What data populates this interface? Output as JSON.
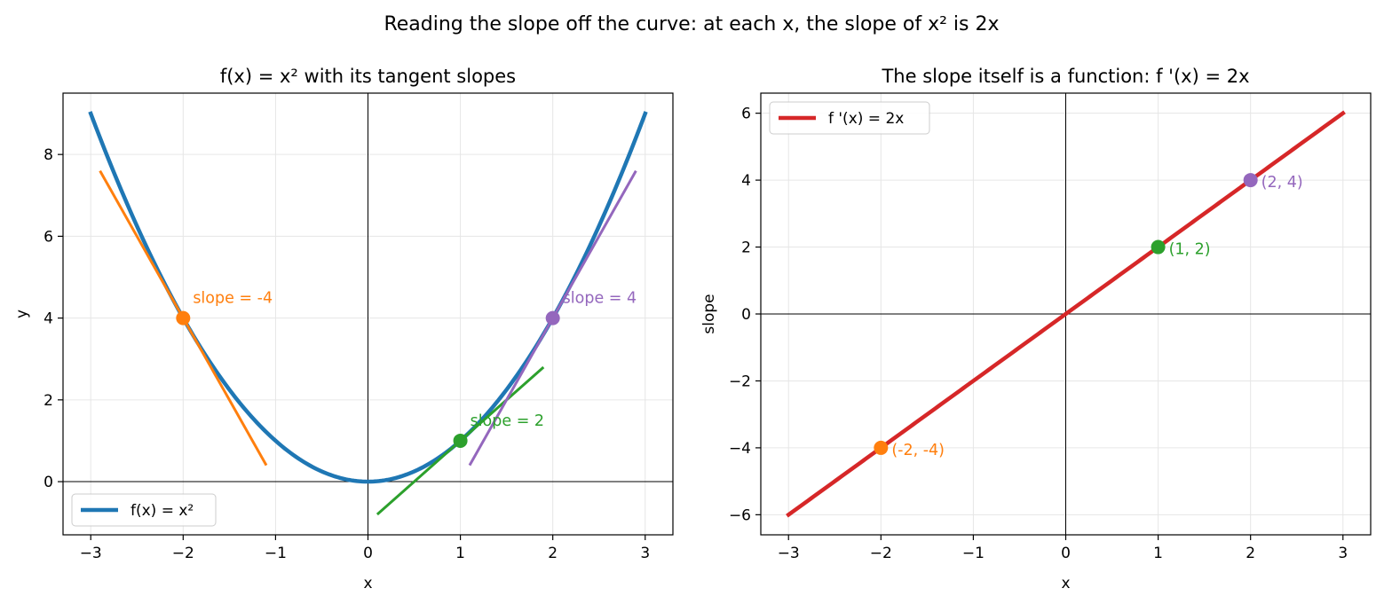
{
  "figure": {
    "suptitle": "Reading the slope off the curve: at each x, the slope of x² is 2x"
  },
  "chart_data": [
    {
      "type": "line",
      "title": "f(x) = x²  with its tangent slopes",
      "xlabel": "x",
      "ylabel": "y",
      "xlim": [
        -3.3,
        3.3
      ],
      "ylim": [
        -1.3,
        9.5
      ],
      "xticks": [
        -3,
        -2,
        -1,
        0,
        1,
        2,
        3
      ],
      "xtick_labels": [
        "−3",
        "−2",
        "−1",
        "0",
        "1",
        "2",
        "3"
      ],
      "yticks": [
        0,
        2,
        4,
        6,
        8
      ],
      "ytick_labels": [
        "0",
        "2",
        "4",
        "6",
        "8"
      ],
      "grid": true,
      "legend_position": "lower left",
      "series": [
        {
          "name": "f(x) = x²",
          "function": "x^2",
          "x_range": [
            -3,
            3
          ],
          "color": "#1f77b4"
        }
      ],
      "tangents": [
        {
          "x0": -2,
          "y0": 4,
          "slope": -4,
          "x_range": [
            -2.9,
            -1.1
          ],
          "color": "#ff7f0e",
          "label": "slope = -4"
        },
        {
          "x0": 1,
          "y0": 1,
          "slope": 2,
          "x_range": [
            0.1,
            1.9
          ],
          "color": "#2ca02c",
          "label": "slope = 2"
        },
        {
          "x0": 2,
          "y0": 4,
          "slope": 4,
          "x_range": [
            1.1,
            2.9
          ],
          "color": "#9467bd",
          "label": "slope = 4"
        }
      ]
    },
    {
      "type": "line",
      "title": "The slope itself is a function: f '(x) = 2x",
      "xlabel": "x",
      "ylabel": "slope",
      "xlim": [
        -3.3,
        3.3
      ],
      "ylim": [
        -6.6,
        6.6
      ],
      "xticks": [
        -3,
        -2,
        -1,
        0,
        1,
        2,
        3
      ],
      "xtick_labels": [
        "−3",
        "−2",
        "−1",
        "0",
        "1",
        "2",
        "3"
      ],
      "yticks": [
        -6,
        -4,
        -2,
        0,
        2,
        4,
        6
      ],
      "ytick_labels": [
        "−6",
        "−4",
        "−2",
        "0",
        "2",
        "4",
        "6"
      ],
      "grid": true,
      "legend_position": "upper left",
      "series": [
        {
          "name": "f '(x) = 2x",
          "function": "2x",
          "x_range": [
            -3,
            3
          ],
          "color": "#d62728"
        }
      ],
      "points": [
        {
          "x": -2,
          "y": -4,
          "color": "#ff7f0e",
          "label": "(-2, -4)"
        },
        {
          "x": 1,
          "y": 2,
          "color": "#2ca02c",
          "label": "(1, 2)"
        },
        {
          "x": 2,
          "y": 4,
          "color": "#9467bd",
          "label": "(2, 4)"
        }
      ]
    }
  ]
}
